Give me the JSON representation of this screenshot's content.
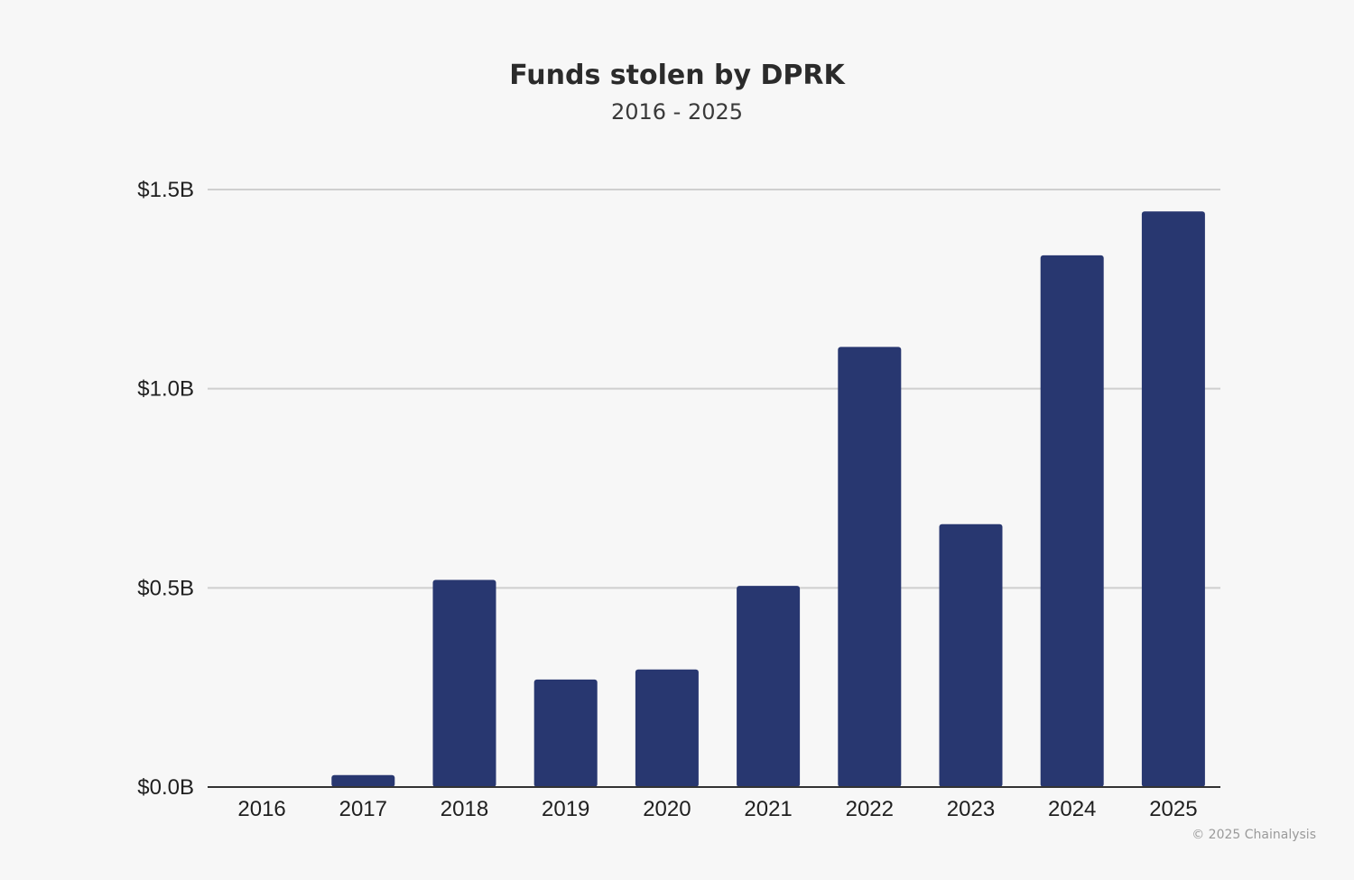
{
  "chart_data": {
    "type": "bar",
    "title": "Funds stolen by DPRK",
    "subtitle": "2016 - 2025",
    "categories": [
      "2016",
      "2017",
      "2018",
      "2019",
      "2020",
      "2021",
      "2022",
      "2023",
      "2024",
      "2025"
    ],
    "values": [
      0.0,
      0.03,
      0.52,
      0.27,
      0.295,
      0.505,
      1.105,
      0.66,
      1.335,
      1.445
    ],
    "ylim": [
      0,
      1.5
    ],
    "yticks": [
      0,
      0.5,
      1.0,
      1.5
    ],
    "ytick_labels": [
      "$0.0B",
      "$0.5B",
      "$1.0B",
      "$1.5B"
    ],
    "xlabel": "",
    "ylabel": "",
    "unit": "billion USD",
    "grid": true,
    "legend": "none",
    "bar_color": "#283770"
  },
  "footer": {
    "copyright": "© 2025 Chainalysis"
  }
}
